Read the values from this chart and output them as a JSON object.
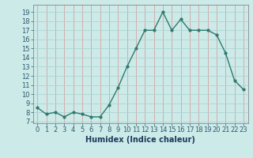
{
  "x": [
    0,
    1,
    2,
    3,
    4,
    5,
    6,
    7,
    8,
    9,
    10,
    11,
    12,
    13,
    14,
    15,
    16,
    17,
    18,
    19,
    20,
    21,
    22,
    23
  ],
  "y": [
    8.5,
    7.8,
    8.0,
    7.5,
    8.0,
    7.8,
    7.5,
    7.5,
    8.8,
    10.7,
    13.0,
    15.0,
    17.0,
    17.0,
    19.0,
    17.0,
    18.2,
    17.0,
    17.0,
    17.0,
    16.5,
    14.5,
    11.5,
    10.5
  ],
  "line_color": "#2d7a6e",
  "marker": "o",
  "markersize": 2.0,
  "linewidth": 1.0,
  "bg_color": "#cceae8",
  "grid_color_v": "#d9a0a0",
  "grid_color_h": "#aed4d2",
  "xlabel": "Humidex (Indice chaleur)",
  "xlabel_fontsize": 7,
  "ylabel_ticks": [
    7,
    8,
    9,
    10,
    11,
    12,
    13,
    14,
    15,
    16,
    17,
    18,
    19
  ],
  "xlim": [
    -0.5,
    23.5
  ],
  "ylim": [
    6.8,
    19.8
  ],
  "tick_fontsize": 6,
  "xlabel_color": "#1a3a5c",
  "xlabel_fontweight": "bold"
}
